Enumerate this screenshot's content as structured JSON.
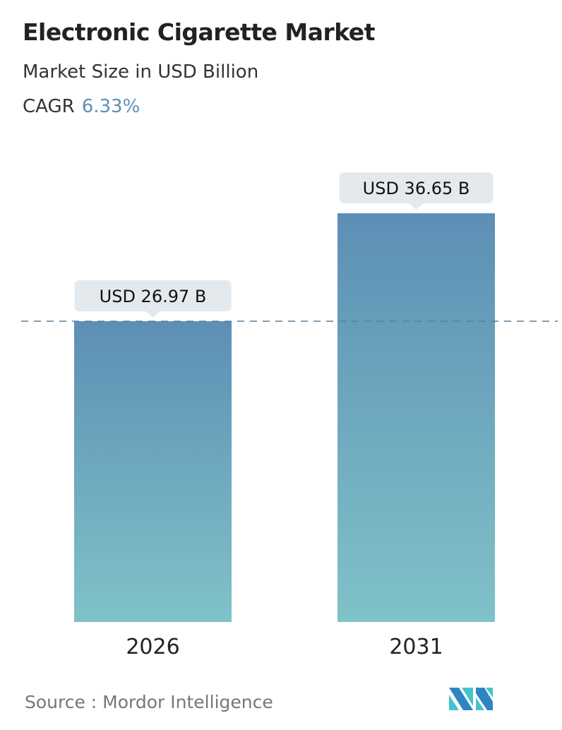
{
  "header": {
    "title": "Electronic Cigarette Market",
    "subtitle": "Market Size in USD Billion",
    "cagr_label": "CAGR",
    "cagr_value": "6.33%"
  },
  "chart_data": {
    "type": "bar",
    "categories": [
      "2026",
      "2031"
    ],
    "values": [
      26.97,
      36.65
    ],
    "data_labels": [
      "USD 26.97 B",
      "USD 36.65 B"
    ],
    "reference_line": 26.97,
    "grid": false,
    "colors": {
      "bar_top": "#5d8fb5",
      "bar_bottom": "#80c2c8",
      "label_bg": "#e3e9ec",
      "dash": "#5a7f9a"
    }
  },
  "footer": {
    "source": "Source :  Mordor Intelligence",
    "logo": "MI"
  }
}
